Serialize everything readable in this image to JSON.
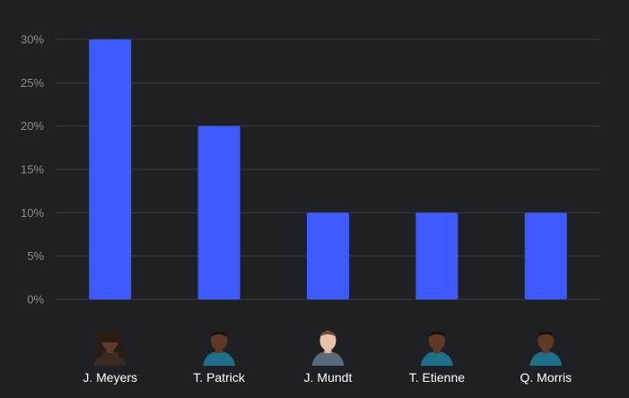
{
  "chart_data": {
    "type": "bar",
    "title": "",
    "xlabel": "",
    "ylabel": "",
    "categories": [
      "J. Meyers",
      "T. Patrick",
      "J. Mundt",
      "T. Etienne",
      "Q. Morris"
    ],
    "values": [
      30,
      20,
      10,
      10,
      10
    ],
    "ylim": [
      0,
      30
    ],
    "yticks": [
      "0%",
      "5%",
      "10%",
      "15%",
      "20%",
      "25%",
      "30%"
    ],
    "grid": true,
    "bar_color": "#3d5afe",
    "avatars": [
      "player-headshot-icon",
      "player-headshot-icon",
      "player-headshot-icon",
      "player-headshot-icon",
      "player-headshot-icon"
    ]
  },
  "colors": {
    "background": "#1f2023",
    "grid": "#3a3b3f",
    "tick_text": "#8b8d91",
    "label_text": "#ffffff"
  }
}
